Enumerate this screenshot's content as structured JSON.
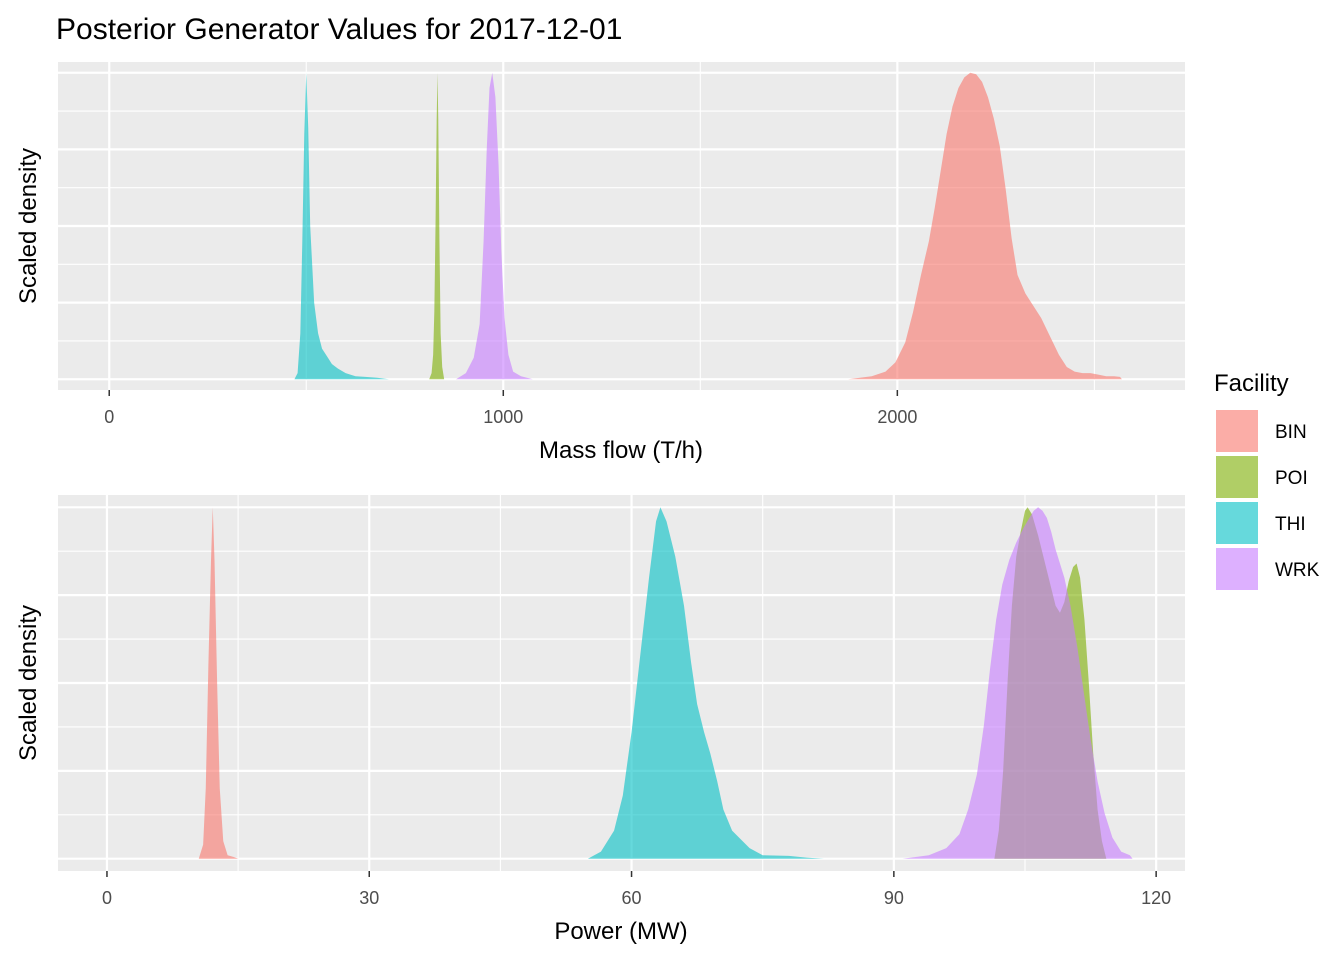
{
  "chart_data": {
    "type": "area",
    "title": "Posterior Generator Values for 2017-12-01",
    "legend": {
      "title": "Facility",
      "placement": "right",
      "items": [
        {
          "name": "BIN",
          "color": "#F8766D"
        },
        {
          "name": "POI",
          "color": "#7CAE00"
        },
        {
          "name": "THI",
          "color": "#00BFC4"
        },
        {
          "name": "WRK",
          "color": "#C77CFF"
        }
      ]
    },
    "panels": [
      {
        "id": "mass",
        "xlabel": "Mass flow (T/h)",
        "ylabel": "Scaled density",
        "xlim": [
          -130,
          2730
        ],
        "ylim": [
          -0.035,
          1.035
        ],
        "xticks": [
          0,
          1000,
          2000
        ],
        "xtick_labels": [
          "0",
          "1000",
          "2000"
        ],
        "xminor": [
          500,
          1500,
          2500
        ],
        "ymajor": [
          0.25,
          0.5,
          0.75
        ],
        "yminor": [
          0.125,
          0.375,
          0.625,
          0.875
        ],
        "series": [
          {
            "name": "THI",
            "points": [
              [
                470,
                0
              ],
              [
                478,
                0.02
              ],
              [
                485,
                0.15
              ],
              [
                490,
                0.45
              ],
              [
                495,
                0.8
              ],
              [
                500,
                1.0
              ],
              [
                505,
                0.82
              ],
              [
                510,
                0.5
              ],
              [
                520,
                0.25
              ],
              [
                530,
                0.15
              ],
              [
                540,
                0.1
              ],
              [
                555,
                0.07
              ],
              [
                565,
                0.05
              ],
              [
                580,
                0.035
              ],
              [
                600,
                0.02
              ],
              [
                625,
                0.01
              ],
              [
                650,
                0.008
              ],
              [
                680,
                0.005
              ],
              [
                710,
                0
              ]
            ]
          },
          {
            "name": "POI",
            "points": [
              [
                812,
                0
              ],
              [
                818,
                0.02
              ],
              [
                822,
                0.08
              ],
              [
                825,
                0.22
              ],
              [
                828,
                0.5
              ],
              [
                831,
                0.85
              ],
              [
                833,
                1.0
              ],
              [
                835,
                0.85
              ],
              [
                838,
                0.45
              ],
              [
                841,
                0.15
              ],
              [
                845,
                0.04
              ],
              [
                850,
                0
              ]
            ]
          },
          {
            "name": "WRK",
            "points": [
              [
                880,
                0
              ],
              [
                905,
                0.02
              ],
              [
                925,
                0.07
              ],
              [
                940,
                0.18
              ],
              [
                950,
                0.45
              ],
              [
                958,
                0.75
              ],
              [
                965,
                0.95
              ],
              [
                972,
                1.0
              ],
              [
                980,
                0.92
              ],
              [
                988,
                0.7
              ],
              [
                995,
                0.42
              ],
              [
                1003,
                0.2
              ],
              [
                1013,
                0.08
              ],
              [
                1025,
                0.025
              ],
              [
                1045,
                0.01
              ],
              [
                1075,
                0
              ]
            ]
          },
          {
            "name": "BIN",
            "points": [
              [
                1875,
                0
              ],
              [
                1905,
                0.005
              ],
              [
                1935,
                0.01
              ],
              [
                1970,
                0.025
              ],
              [
                1995,
                0.055
              ],
              [
                2020,
                0.12
              ],
              [
                2040,
                0.22
              ],
              [
                2060,
                0.34
              ],
              [
                2080,
                0.45
              ],
              [
                2095,
                0.56
              ],
              [
                2110,
                0.68
              ],
              [
                2125,
                0.8
              ],
              [
                2140,
                0.89
              ],
              [
                2155,
                0.95
              ],
              [
                2170,
                0.985
              ],
              [
                2185,
                1.0
              ],
              [
                2200,
                0.995
              ],
              [
                2215,
                0.97
              ],
              [
                2230,
                0.92
              ],
              [
                2245,
                0.85
              ],
              [
                2260,
                0.76
              ],
              [
                2275,
                0.62
              ],
              [
                2290,
                0.46
              ],
              [
                2305,
                0.34
              ],
              [
                2325,
                0.28
              ],
              [
                2345,
                0.24
              ],
              [
                2365,
                0.2
              ],
              [
                2380,
                0.16
              ],
              [
                2395,
                0.12
              ],
              [
                2410,
                0.08
              ],
              [
                2430,
                0.04
              ],
              [
                2450,
                0.025
              ],
              [
                2470,
                0.02
              ],
              [
                2490,
                0.02
              ],
              [
                2510,
                0.015
              ],
              [
                2530,
                0.01
              ],
              [
                2550,
                0.01
              ],
              [
                2565,
                0.008
              ],
              [
                2570,
                0
              ]
            ]
          }
        ]
      },
      {
        "id": "power",
        "xlabel": "Power (MW)",
        "ylabel": "Scaled density",
        "xlim": [
          -5.6,
          123.3
        ],
        "ylim": [
          -0.035,
          1.035
        ],
        "xticks": [
          0,
          30,
          60,
          90,
          120
        ],
        "xtick_labels": [
          "0",
          "30",
          "60",
          "90",
          "120"
        ],
        "xminor": [
          15,
          45,
          75,
          105
        ],
        "ymajor": [
          0.25,
          0.5,
          0.75
        ],
        "yminor": [
          0.125,
          0.375,
          0.625,
          0.875
        ],
        "series": [
          {
            "name": "BIN",
            "points": [
              [
                10.5,
                0
              ],
              [
                11,
                0.04
              ],
              [
                11.3,
                0.2
              ],
              [
                11.6,
                0.55
              ],
              [
                11.9,
                0.85
              ],
              [
                12.1,
                1.0
              ],
              [
                12.3,
                0.85
              ],
              [
                12.6,
                0.5
              ],
              [
                12.9,
                0.2
              ],
              [
                13.3,
                0.05
              ],
              [
                13.8,
                0.01
              ],
              [
                14.5,
                0.005
              ],
              [
                15,
                0
              ]
            ]
          },
          {
            "name": "THI",
            "points": [
              [
                55,
                0
              ],
              [
                56.5,
                0.02
              ],
              [
                58,
                0.08
              ],
              [
                59,
                0.18
              ],
              [
                60,
                0.36
              ],
              [
                61,
                0.58
              ],
              [
                62,
                0.8
              ],
              [
                62.8,
                0.96
              ],
              [
                63.3,
                1.0
              ],
              [
                64,
                0.96
              ],
              [
                65,
                0.86
              ],
              [
                66,
                0.72
              ],
              [
                66.8,
                0.56
              ],
              [
                67.5,
                0.44
              ],
              [
                68.3,
                0.36
              ],
              [
                69,
                0.3
              ],
              [
                69.8,
                0.22
              ],
              [
                70.5,
                0.14
              ],
              [
                71.5,
                0.08
              ],
              [
                72.5,
                0.055
              ],
              [
                73.5,
                0.03
              ],
              [
                75,
                0.01
              ],
              [
                78,
                0.008
              ],
              [
                80,
                0.003
              ],
              [
                82,
                0
              ]
            ]
          },
          {
            "name": "POI",
            "points": [
              [
                101.5,
                0
              ],
              [
                102,
                0.08
              ],
              [
                102.5,
                0.25
              ],
              [
                103,
                0.5
              ],
              [
                103.5,
                0.72
              ],
              [
                104,
                0.86
              ],
              [
                104.5,
                0.93
              ],
              [
                105,
                0.99
              ],
              [
                105.3,
                1.0
              ],
              [
                105.8,
                0.98
              ],
              [
                106.5,
                0.92
              ],
              [
                107.3,
                0.84
              ],
              [
                108,
                0.77
              ],
              [
                108.5,
                0.72
              ],
              [
                109,
                0.7
              ],
              [
                109.5,
                0.73
              ],
              [
                110,
                0.79
              ],
              [
                110.5,
                0.83
              ],
              [
                110.9,
                0.84
              ],
              [
                111.3,
                0.8
              ],
              [
                111.8,
                0.68
              ],
              [
                112.3,
                0.5
              ],
              [
                112.8,
                0.3
              ],
              [
                113.3,
                0.14
              ],
              [
                113.8,
                0.05
              ],
              [
                114.3,
                0
              ]
            ]
          },
          {
            "name": "WRK",
            "points": [
              [
                91,
                0
              ],
              [
                94,
                0.01
              ],
              [
                96,
                0.03
              ],
              [
                97.5,
                0.07
              ],
              [
                98.5,
                0.14
              ],
              [
                99.5,
                0.24
              ],
              [
                100.3,
                0.38
              ],
              [
                101,
                0.54
              ],
              [
                101.7,
                0.68
              ],
              [
                102.4,
                0.78
              ],
              [
                103.2,
                0.85
              ],
              [
                104,
                0.9
              ],
              [
                104.8,
                0.94
              ],
              [
                105.5,
                0.97
              ],
              [
                106,
                0.99
              ],
              [
                106.5,
                1.0
              ],
              [
                107,
                0.99
              ],
              [
                107.5,
                0.97
              ],
              [
                108,
                0.93
              ],
              [
                108.5,
                0.88
              ],
              [
                109,
                0.84
              ],
              [
                109.5,
                0.8
              ],
              [
                110.2,
                0.72
              ],
              [
                111,
                0.6
              ],
              [
                111.8,
                0.46
              ],
              [
                112.5,
                0.34
              ],
              [
                113.3,
                0.22
              ],
              [
                114.1,
                0.13
              ],
              [
                115,
                0.06
              ],
              [
                116,
                0.02
              ],
              [
                117,
                0.01
              ],
              [
                117.3,
                0
              ]
            ]
          }
        ]
      }
    ]
  }
}
